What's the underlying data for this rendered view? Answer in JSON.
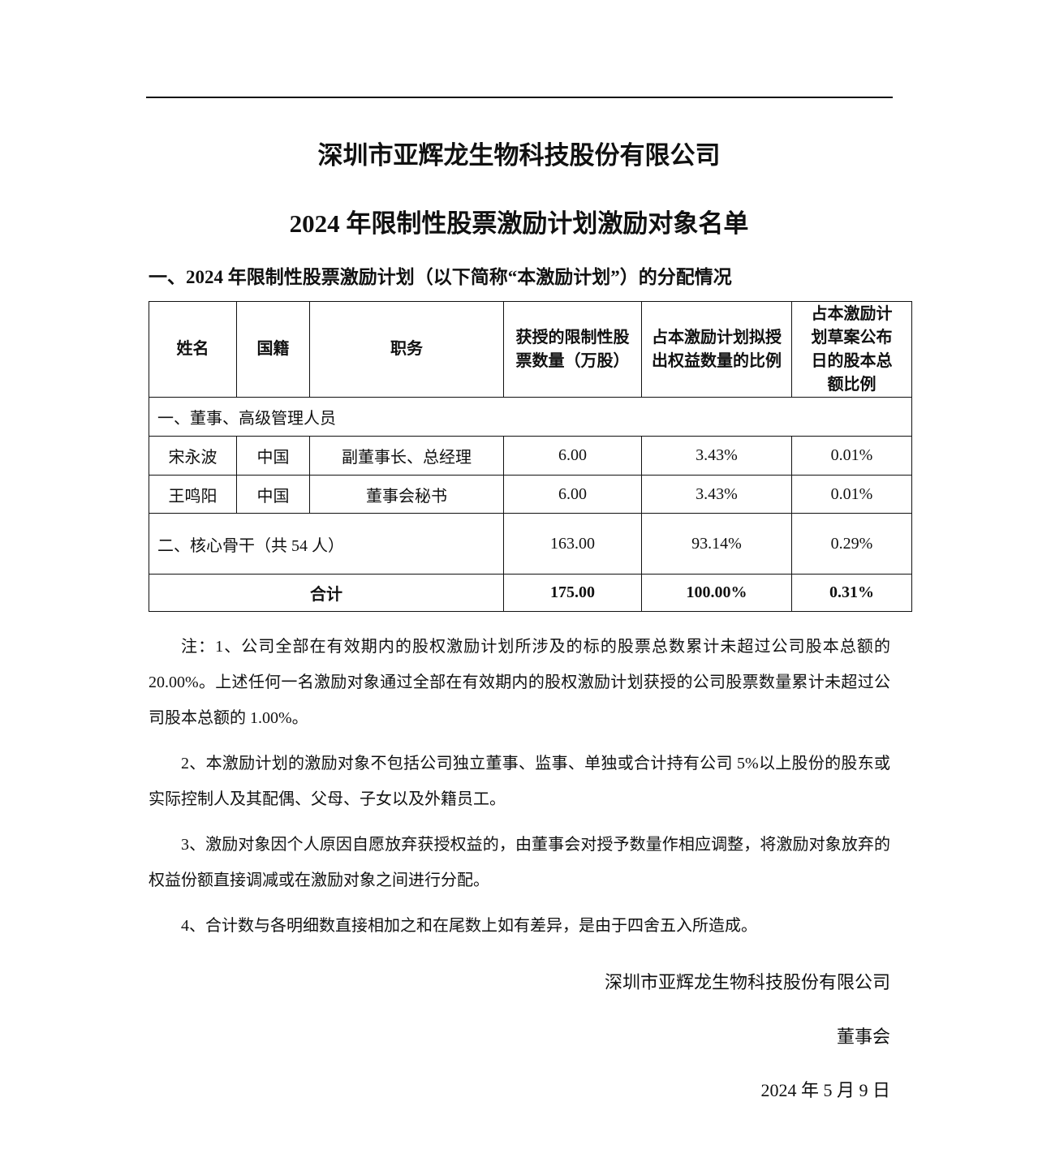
{
  "document": {
    "company_title": "深圳市亚辉龙生物科技股份有限公司",
    "list_title": "2024 年限制性股票激励计划激励对象名单",
    "section_heading": "一、2024 年限制性股票激励计划（以下简称“本激励计划”）的分配情况"
  },
  "table": {
    "headers": [
      "姓名",
      "国籍",
      "职务",
      "获授的限制性股票数量（万股）",
      "占本激励计划拟授出权益数量的比例",
      "占本激励计划草案公布日的股本总额比例"
    ],
    "group1_label": "一、董事、高级管理人员",
    "rows": [
      {
        "name": "宋永波",
        "nationality": "中国",
        "position": "副董事长、总经理",
        "shares": "6.00",
        "pct_plan": "3.43%",
        "pct_capital": "0.01%"
      },
      {
        "name": "王鸣阳",
        "nationality": "中国",
        "position": "董事会秘书",
        "shares": "6.00",
        "pct_plan": "3.43%",
        "pct_capital": "0.01%"
      }
    ],
    "core": {
      "label": "二、核心骨干（共 54 人）",
      "shares": "163.00",
      "pct_plan": "93.14%",
      "pct_capital": "0.29%"
    },
    "total": {
      "label": "合计",
      "shares": "175.00",
      "pct_plan": "100.00%",
      "pct_capital": "0.31%"
    }
  },
  "notes": [
    "注：1、公司全部在有效期内的股权激励计划所涉及的标的股票总数累计未超过公司股本总额的 20.00%。上述任何一名激励对象通过全部在有效期内的股权激励计划获授的公司股票数量累计未超过公司股本总额的 1.00%。",
    "2、本激励计划的激励对象不包括公司独立董事、监事、单独或合计持有公司 5%以上股份的股东或实际控制人及其配偶、父母、子女以及外籍员工。",
    "3、激励对象因个人原因自愿放弃获授权益的，由董事会对授予数量作相应调整，将激励对象放弃的权益份额直接调减或在激励对象之间进行分配。",
    "4、合计数与各明细数直接相加之和在尾数上如有差异，是由于四舍五入所造成。"
  ],
  "signature": {
    "company": "深圳市亚辉龙生物科技股份有限公司",
    "board": "董事会",
    "date": "2024 年 5 月 9 日"
  }
}
